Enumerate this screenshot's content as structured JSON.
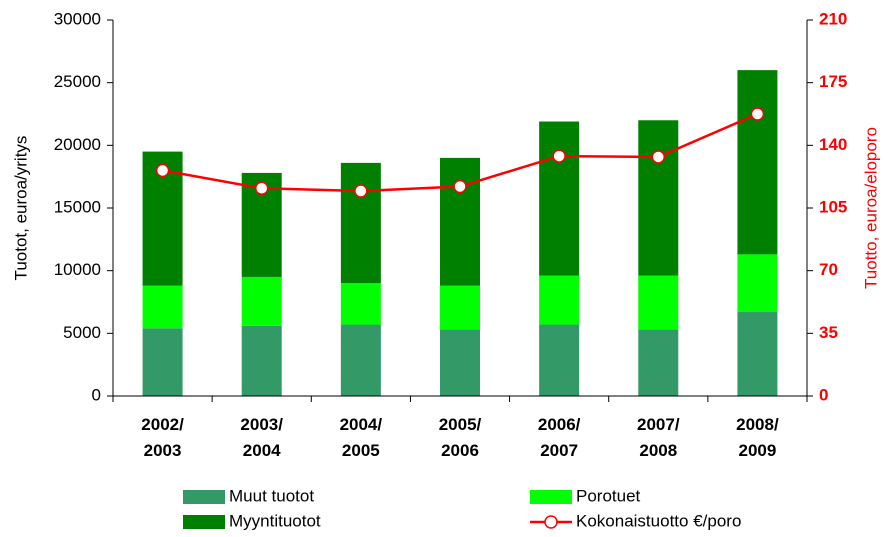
{
  "chart_data": {
    "type": "stacked_bar_line",
    "categories": [
      "2002/\n2003",
      "2003/\n2004",
      "2004/\n2005",
      "2005/\n2006",
      "2006/\n2007",
      "2007/\n2008",
      "2008/\n2009"
    ],
    "series": [
      {
        "name": "Muut tuotot",
        "color": "#339966",
        "type": "bar",
        "values": [
          5400,
          5600,
          5700,
          5300,
          5700,
          5300,
          6700
        ]
      },
      {
        "name": "Porotuet",
        "color": "#00ff00",
        "type": "bar",
        "values": [
          3400,
          3900,
          3300,
          3500,
          3900,
          4300,
          4600
        ]
      },
      {
        "name": "Myyntituotot",
        "color": "#008000",
        "type": "bar",
        "values": [
          10700,
          8300,
          9600,
          10200,
          12300,
          12400,
          14700
        ]
      },
      {
        "name": "Kokonaistuotto €/poro",
        "color": "#ff0000",
        "type": "line",
        "axis": "y2",
        "values": [
          126,
          116,
          114.5,
          117,
          134,
          133.5,
          157.5
        ]
      }
    ],
    "ylabel": "Tuotot, euroa/yritys",
    "y2label": "Tuotto, euroa/eloporo",
    "ylim": [
      0,
      30000
    ],
    "yticks": [
      0,
      5000,
      10000,
      15000,
      20000,
      25000,
      30000
    ],
    "y2lim": [
      0,
      210
    ],
    "y2ticks": [
      0,
      35,
      70,
      105,
      140,
      175,
      210
    ]
  }
}
